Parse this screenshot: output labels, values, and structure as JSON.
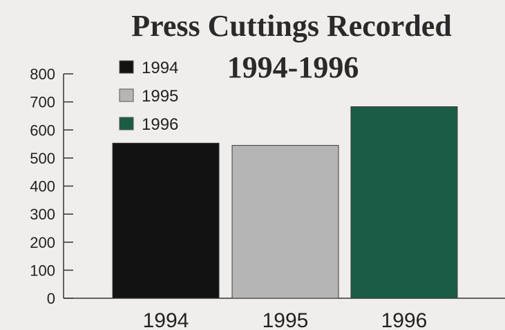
{
  "chart_data": {
    "type": "bar",
    "title": "Press Cuttings Recorded",
    "subtitle": "1994-1996",
    "categories": [
      "1994",
      "1995",
      "1996"
    ],
    "values": [
      553,
      545,
      683
    ],
    "colors": [
      "#121212",
      "#b5b5b5",
      "#1a5c45"
    ],
    "ylim": [
      0,
      800
    ],
    "yticks": [
      "0",
      "100",
      "200",
      "300",
      "400",
      "500",
      "600",
      "700",
      "800"
    ],
    "legend": {
      "placement": "top-left",
      "entries": [
        "1994",
        "1995",
        "1996"
      ]
    },
    "grid": false
  }
}
